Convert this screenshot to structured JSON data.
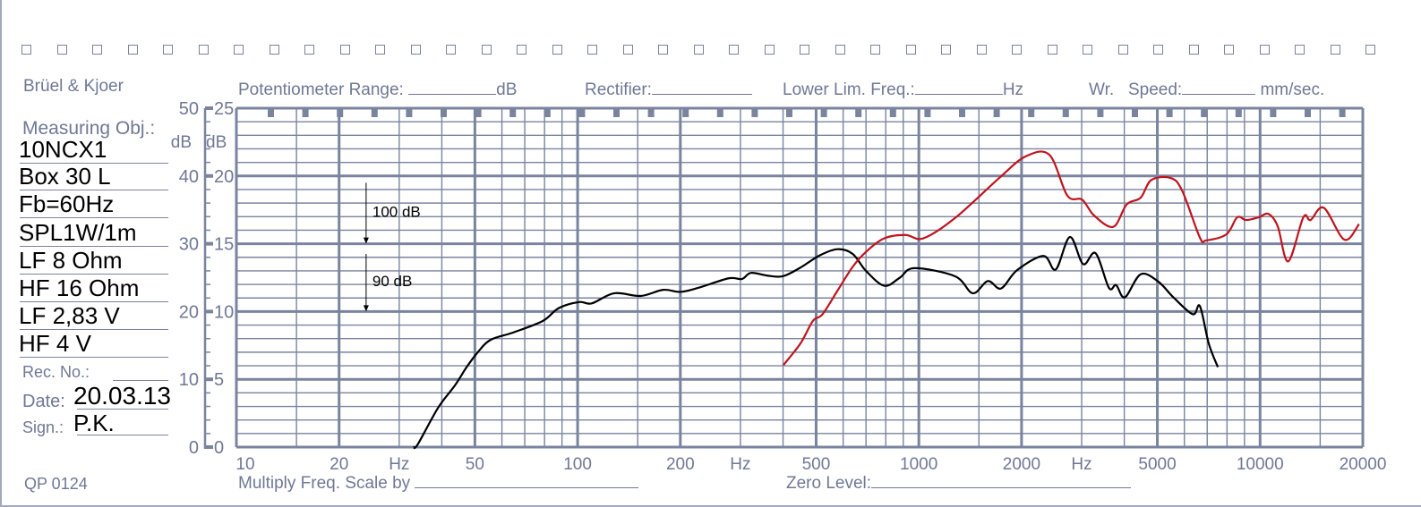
{
  "header": {
    "brand": "Brüel & Kjoer",
    "potentiometer_label": "Potentiometer Range:",
    "potentiometer_unit": "dB",
    "rectifier_label": "Rectifier:",
    "lower_lim_label": "Lower Lim. Freq.:",
    "lower_lim_unit": "Hz",
    "speed_label": "Wr.   Speed:",
    "speed_unit": "mm/sec."
  },
  "left_panel": {
    "measuring_obj_label": "Measuring Obj.:",
    "entries": [
      "10NCX1",
      "Box 30 L",
      "Fb=60Hz",
      "SPL1W/1m",
      "LF 8 Ohm",
      "HF 16 Ohm",
      "LF 2,83 V",
      "HF 4 V"
    ],
    "rec_no_label": "Rec.  No.:",
    "date_label": "Date:",
    "date_value": "20.03.13",
    "sign_label": "Sign.:",
    "sign_value": "P.K.",
    "form_code": "QP  0124"
  },
  "footer": {
    "multiply_label": "Multiply Freq. Scale by",
    "zero_level_label": "Zero Level:"
  },
  "colors": {
    "grid": "#7a849e",
    "label": "#6f7896",
    "woofer_curve": "#000000",
    "tweeter_curve": "#c0141c"
  },
  "chart_data": {
    "type": "line",
    "title": "",
    "xscale": "log",
    "xlim": [
      10,
      20000
    ],
    "ylim": [
      0,
      50
    ],
    "grid": true,
    "legend": "none",
    "x_ticks": [
      {
        "value": 10,
        "label": "10"
      },
      {
        "value": 20,
        "label": "20"
      },
      {
        "value": 30,
        "label": "Hz"
      },
      {
        "value": 50,
        "label": "50"
      },
      {
        "value": 100,
        "label": "100"
      },
      {
        "value": 200,
        "label": "200"
      },
      {
        "value": 300,
        "label": "Hz"
      },
      {
        "value": 500,
        "label": "500"
      },
      {
        "value": 1000,
        "label": "1000"
      },
      {
        "value": 2000,
        "label": "2000"
      },
      {
        "value": 3000,
        "label": "Hz"
      },
      {
        "value": 5000,
        "label": "5000"
      },
      {
        "value": 10000,
        "label": "10000"
      },
      {
        "value": 20000,
        "label": "20000"
      }
    ],
    "y_ticks_outer": [
      0,
      10,
      20,
      30,
      40,
      50
    ],
    "y_ticks_inner": [
      0,
      5,
      10,
      15,
      20,
      25
    ],
    "y_unit_outer": "dB",
    "y_unit_inner": "dB",
    "annotations": [
      {
        "label": "100 dB",
        "x": 24,
        "y_from": 39,
        "y_to": 30
      },
      {
        "label": "90 dB",
        "x": 24,
        "y_from": 28.5,
        "y_to": 20
      }
    ],
    "series": [
      {
        "color": "#000000",
        "points": [
          [
            33,
            0
          ],
          [
            34,
            0.4
          ],
          [
            39,
            5.8
          ],
          [
            43.7,
            9.1
          ],
          [
            47.3,
            11.8
          ],
          [
            51,
            14
          ],
          [
            55.5,
            15.8
          ],
          [
            64.7,
            16.9
          ],
          [
            79,
            18.6
          ],
          [
            88,
            20.5
          ],
          [
            101,
            21.4
          ],
          [
            110,
            21.2
          ],
          [
            128,
            22.7
          ],
          [
            153,
            22.3
          ],
          [
            178,
            23.2
          ],
          [
            200,
            22.9
          ],
          [
            226,
            23.5
          ],
          [
            277,
            24.9
          ],
          [
            303,
            24.8
          ],
          [
            322,
            25.7
          ],
          [
            360,
            25.3
          ],
          [
            399,
            25.2
          ],
          [
            447,
            26.4
          ],
          [
            513,
            28.3
          ],
          [
            578,
            29.2
          ],
          [
            640,
            28.5
          ],
          [
            700,
            26
          ],
          [
            792,
            23.8
          ],
          [
            880,
            25
          ],
          [
            970,
            26.4
          ],
          [
            1277,
            25.2
          ],
          [
            1439,
            22.7
          ],
          [
            1593,
            24.5
          ],
          [
            1741,
            23.4
          ],
          [
            1940,
            26.1
          ],
          [
            2317,
            28.2
          ],
          [
            2519,
            26.2
          ],
          [
            2771,
            31.0
          ],
          [
            3030,
            27.0
          ],
          [
            3296,
            28.6
          ],
          [
            3606,
            23.5
          ],
          [
            3786,
            23.9
          ],
          [
            4016,
            22.1
          ],
          [
            4468,
            25.5
          ],
          [
            5035,
            24.4
          ],
          [
            5570,
            22.1
          ],
          [
            6350,
            19.6
          ],
          [
            6662,
            20.8
          ],
          [
            7070,
            15.3
          ],
          [
            7520,
            11.8
          ]
        ]
      },
      {
        "color": "#c0141c",
        "points": [
          [
            401,
            12.1
          ],
          [
            450,
            15.3
          ],
          [
            489,
            18.6
          ],
          [
            522,
            19.6
          ],
          [
            578,
            23.1
          ],
          [
            640,
            26.6
          ],
          [
            700,
            28.8
          ],
          [
            792,
            30.8
          ],
          [
            914,
            31.3
          ],
          [
            1030,
            30.8
          ],
          [
            1277,
            33.8
          ],
          [
            1720,
            39.7
          ],
          [
            2058,
            42.9
          ],
          [
            2415,
            43.1
          ],
          [
            2724,
            37.1
          ],
          [
            3012,
            36.5
          ],
          [
            3257,
            34.2
          ],
          [
            3714,
            32.5
          ],
          [
            4065,
            35.8
          ],
          [
            4468,
            36.8
          ],
          [
            4800,
            39.4
          ],
          [
            5470,
            39.7
          ],
          [
            5915,
            37.8
          ],
          [
            6662,
            30.9
          ],
          [
            6950,
            30.5
          ],
          [
            7970,
            31.4
          ],
          [
            8570,
            33.9
          ],
          [
            9100,
            33.5
          ],
          [
            9900,
            33.9
          ],
          [
            10580,
            34.4
          ],
          [
            11260,
            32.6
          ],
          [
            12090,
            27.4
          ],
          [
            13390,
            33.9
          ],
          [
            14060,
            33.5
          ],
          [
            15380,
            35.3
          ],
          [
            17660,
            30.6
          ],
          [
            19500,
            32.9
          ]
        ]
      }
    ]
  }
}
